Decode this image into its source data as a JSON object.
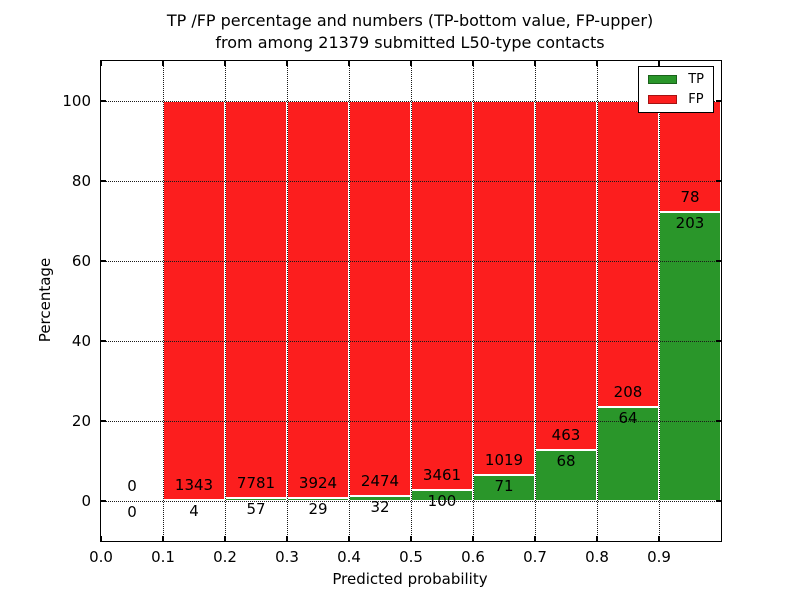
{
  "chart_data": {
    "type": "bar",
    "stacked": true,
    "unit": "percent",
    "title_line1": "TP /FP percentage and numbers (TP-bottom value, FP-upper)",
    "title_line2": "from among 21379 submitted L50-type contacts",
    "xlabel": "Predicted probability",
    "ylabel": "Percentage",
    "xlim": [
      0.0,
      1.0
    ],
    "ylim": [
      -10,
      110
    ],
    "grid": "dotted-black-over-bars",
    "legend_position": "upper right",
    "bin_edges": [
      0.0,
      0.1,
      0.2,
      0.3,
      0.4,
      0.5,
      0.6,
      0.7,
      0.8,
      0.9,
      1.0
    ],
    "xticks": [
      {
        "value": 0.0,
        "label": "0.0"
      },
      {
        "value": 0.1,
        "label": "0.1"
      },
      {
        "value": 0.2,
        "label": "0.2"
      },
      {
        "value": 0.3,
        "label": "0.3"
      },
      {
        "value": 0.4,
        "label": "0.4"
      },
      {
        "value": 0.5,
        "label": "0.5"
      },
      {
        "value": 0.6,
        "label": "0.6"
      },
      {
        "value": 0.7,
        "label": "0.7"
      },
      {
        "value": 0.8,
        "label": "0.8"
      },
      {
        "value": 0.9,
        "label": "0.9"
      }
    ],
    "yticks": [
      {
        "value": 0,
        "label": "0"
      },
      {
        "value": 20,
        "label": "20"
      },
      {
        "value": 40,
        "label": "40"
      },
      {
        "value": 60,
        "label": "60"
      },
      {
        "value": 80,
        "label": "80"
      },
      {
        "value": 100,
        "label": "100"
      }
    ],
    "series": [
      {
        "name": "TP",
        "color": "#2a962a",
        "values": [
          0,
          4,
          57,
          29,
          32,
          100,
          71,
          68,
          64,
          203
        ]
      },
      {
        "name": "FP",
        "color": "#fc1e1e",
        "values": [
          0,
          1343,
          7781,
          3924,
          2474,
          3461,
          1019,
          463,
          208,
          78
        ]
      }
    ],
    "bar_label_note": "TP-bottom value, FP-upper",
    "total": 21379
  }
}
